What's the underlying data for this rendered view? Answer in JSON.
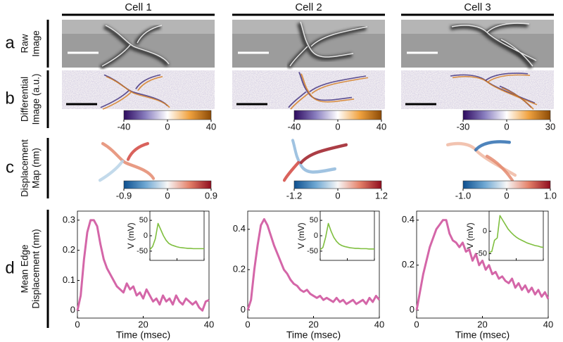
{
  "columns": [
    "Cell 1",
    "Cell 2",
    "Cell 3"
  ],
  "row_labels": [
    {
      "letter": "a",
      "lines": [
        "Raw",
        "Image"
      ]
    },
    {
      "letter": "b",
      "lines": [
        "Differential",
        "Image (a.u.)"
      ]
    },
    {
      "letter": "c",
      "lines": [
        "Displacement",
        "Map (nm)"
      ]
    },
    {
      "letter": "d",
      "lines": [
        "Mean Edge",
        "Displacement (nm)"
      ]
    }
  ],
  "colorbars": {
    "differential": {
      "colors": [
        "#2d0a5e",
        "#8a7fc0",
        "#ffffff",
        "#f1a340",
        "#8c4a06"
      ],
      "items": [
        {
          "lim": [
            -40,
            40
          ],
          "ticks": [
            -40,
            0,
            40
          ]
        },
        {
          "lim": [
            -40,
            40
          ],
          "ticks": [
            -40,
            0,
            40
          ]
        },
        {
          "lim": [
            -30,
            30
          ],
          "ticks": [
            -30,
            0,
            30
          ]
        }
      ]
    },
    "displacement": {
      "colors": [
        "#0d4f8f",
        "#6fa8d3",
        "#f7f7f7",
        "#e5826a",
        "#8f0d1e"
      ],
      "items": [
        {
          "lim": [
            -0.9,
            0.9
          ],
          "ticks": [
            -0.9,
            0,
            0.9
          ]
        },
        {
          "lim": [
            -1.2,
            1.2
          ],
          "ticks": [
            -1.2,
            0,
            1.2
          ]
        },
        {
          "lim": [
            -1,
            1
          ],
          "ticks": [
            {
              "value": -1,
              "label": "-1.0"
            },
            0,
            {
              "value": 1,
              "label": "1.0"
            }
          ]
        }
      ]
    }
  },
  "chart_data": [
    {
      "type": "line",
      "x_label": "Time (msec)",
      "color": "#d466a8",
      "x": [
        0,
        1,
        2,
        3,
        4,
        5,
        6,
        7,
        8,
        9,
        10,
        11,
        12,
        13,
        14,
        15,
        16,
        17,
        18,
        19,
        20,
        21,
        22,
        23,
        24,
        25,
        26,
        27,
        28,
        29,
        30,
        31,
        32,
        33,
        34,
        35,
        36,
        37,
        38,
        39,
        40
      ],
      "values": [
        0,
        0.05,
        0.17,
        0.26,
        0.3,
        0.3,
        0.28,
        0.22,
        0.17,
        0.14,
        0.12,
        0.1,
        0.08,
        0.07,
        0.06,
        0.09,
        0.07,
        0.08,
        0.05,
        0.06,
        0.04,
        0.07,
        0.05,
        0.03,
        0.04,
        0.02,
        0.05,
        0.03,
        0.04,
        0.02,
        0.05,
        0.03,
        0.02,
        0.04,
        0.03,
        0.02,
        0.03,
        0.01,
        0,
        0.03,
        0.035
      ],
      "xlim": [
        0,
        40
      ],
      "xticks": [
        0,
        20,
        40
      ],
      "ylim": [
        -0.025,
        0.33
      ],
      "yticks": [
        0,
        0.1,
        0.2,
        0.3
      ],
      "inset": {
        "type": "line",
        "y_label": "V (mV)",
        "color": "#7fbf3f",
        "x": [
          0,
          2,
          4,
          6,
          8,
          10,
          12,
          14,
          16,
          18,
          20,
          22,
          24,
          26,
          28,
          30,
          32,
          34,
          36,
          38,
          40
        ],
        "values": [
          -45,
          -35,
          -10,
          40,
          20,
          0,
          -15,
          -25,
          -30,
          -33,
          -36,
          -38,
          -39,
          -40,
          -41,
          -41,
          -42,
          -42,
          -42,
          -42,
          -42
        ],
        "xlim": [
          0,
          40
        ],
        "xticks": [
          0,
          20,
          40
        ],
        "ylim": [
          -80,
          80
        ],
        "yticks": [
          50,
          0,
          -50
        ]
      }
    },
    {
      "type": "line",
      "x_label": "Time (msec)",
      "color": "#d466a8",
      "x": [
        0,
        1,
        2,
        3,
        4,
        5,
        6,
        7,
        8,
        9,
        10,
        11,
        12,
        13,
        14,
        15,
        16,
        17,
        18,
        19,
        20,
        21,
        22,
        23,
        24,
        25,
        26,
        27,
        28,
        29,
        30,
        31,
        32,
        33,
        34,
        35,
        36,
        37,
        38,
        39,
        40
      ],
      "values": [
        0,
        0.05,
        0.2,
        0.32,
        0.42,
        0.45,
        0.42,
        0.37,
        0.32,
        0.28,
        0.24,
        0.2,
        0.18,
        0.15,
        0.13,
        0.12,
        0.1,
        0.09,
        0.1,
        0.08,
        0.07,
        0.06,
        0.07,
        0.05,
        0.06,
        0.05,
        0.04,
        0.06,
        0.04,
        0.05,
        0.03,
        0.04,
        0.05,
        0.03,
        0.04,
        0.05,
        0.03,
        0.06,
        0.04,
        0.07,
        0.05
      ],
      "xlim": [
        0,
        40
      ],
      "xticks": [
        0,
        20,
        40
      ],
      "ylim": [
        -0.04,
        0.49
      ],
      "yticks": [
        0,
        0.2,
        0.4
      ],
      "inset": {
        "type": "line",
        "y_label": "V (mV)",
        "color": "#7fbf3f",
        "x": [
          0,
          2,
          4,
          6,
          8,
          10,
          12,
          14,
          16,
          18,
          20,
          22,
          24,
          26,
          28,
          30,
          32,
          34,
          36,
          38,
          40
        ],
        "values": [
          -45,
          -38,
          -5,
          40,
          15,
          -5,
          -18,
          -27,
          -32,
          -35,
          -37,
          -39,
          -40,
          -41,
          -41,
          -42,
          -42,
          -42,
          -43,
          -43,
          -43
        ],
        "xlim": [
          0,
          40
        ],
        "xticks": [
          0,
          20,
          40
        ],
        "ylim": [
          -80,
          80
        ],
        "yticks": [
          50,
          0,
          -50
        ]
      }
    },
    {
      "type": "line",
      "x_label": "Time (msec)",
      "color": "#d466a8",
      "x": [
        0,
        1,
        2,
        3,
        4,
        5,
        6,
        7,
        8,
        9,
        10,
        11,
        12,
        13,
        14,
        15,
        16,
        17,
        18,
        19,
        20,
        21,
        22,
        23,
        24,
        25,
        26,
        27,
        28,
        29,
        30,
        31,
        32,
        33,
        34,
        35,
        36,
        37,
        38,
        39,
        40
      ],
      "values": [
        0,
        0.08,
        0.16,
        0.22,
        0.28,
        0.32,
        0.36,
        0.38,
        0.4,
        0.4,
        0.34,
        0.31,
        0.3,
        0.28,
        0.3,
        0.26,
        0.27,
        0.22,
        0.25,
        0.2,
        0.22,
        0.18,
        0.2,
        0.16,
        0.17,
        0.14,
        0.15,
        0.13,
        0.12,
        0.14,
        0.1,
        0.12,
        0.09,
        0.11,
        0.08,
        0.1,
        0.07,
        0.09,
        0.06,
        0.08,
        0.05
      ],
      "xlim": [
        0,
        40
      ],
      "xticks": [
        0,
        20,
        40
      ],
      "ylim": [
        -0.035,
        0.44
      ],
      "yticks": [
        0,
        0.2,
        0.4
      ],
      "inset": {
        "type": "line",
        "y_label": "V (mV)",
        "color": "#7fbf3f",
        "x": [
          0,
          2,
          4,
          6,
          8,
          10,
          12,
          14,
          16,
          18,
          20,
          22,
          24,
          26,
          28,
          30,
          32,
          34,
          36,
          38,
          40
        ],
        "values": [
          -48,
          -45,
          -20,
          -15,
          35,
          25,
          15,
          5,
          -2,
          -8,
          -13,
          -17,
          -20,
          -23,
          -26,
          -28,
          -30,
          -32,
          -33,
          -35,
          -36
        ],
        "xlim": [
          0,
          40
        ],
        "xticks": [
          0,
          20,
          40
        ],
        "ylim": [
          -65,
          45
        ],
        "yticks": [
          0,
          -50
        ]
      }
    }
  ]
}
